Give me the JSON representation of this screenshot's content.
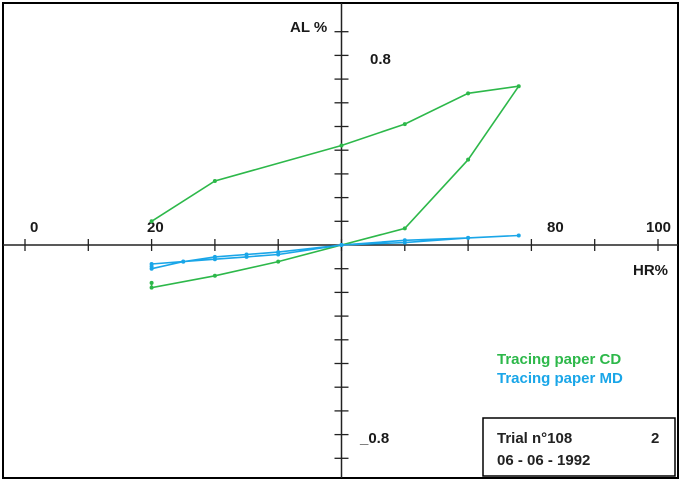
{
  "chart_data": {
    "type": "line",
    "title": "",
    "xlabel": "HR%",
    "ylabel": "AL %",
    "xlim": [
      0,
      100
    ],
    "ylim": [
      -0.8,
      0.8
    ],
    "x_tick_labels": [
      "0",
      "20",
      "80",
      "100"
    ],
    "y_tick_labels": [
      "0.8",
      "_0.8"
    ],
    "series": [
      {
        "name": "Tracing paper CD",
        "color": "#2db84a",
        "x": [
          20,
          30,
          50,
          60,
          70,
          78,
          70,
          60,
          50,
          40,
          30,
          20,
          20
        ],
        "y": [
          0.1,
          0.27,
          0.42,
          0.51,
          0.64,
          0.67,
          0.36,
          0.07,
          0.0,
          -0.07,
          -0.13,
          -0.18,
          -0.16
        ]
      },
      {
        "name": "Tracing paper MD",
        "color": "#1aa6e8",
        "x": [
          20,
          25,
          30,
          35,
          40,
          50,
          60,
          70,
          78,
          70,
          60,
          50,
          40,
          35,
          30,
          25,
          20,
          20
        ],
        "y": [
          -0.08,
          -0.07,
          -0.06,
          -0.05,
          -0.04,
          0.0,
          0.01,
          0.03,
          0.04,
          0.03,
          0.02,
          0.0,
          -0.03,
          -0.04,
          -0.05,
          -0.07,
          -0.1,
          -0.09
        ]
      }
    ],
    "legend": [
      "Tracing paper CD",
      "Tracing paper MD"
    ],
    "legend_position": "lower-right"
  },
  "info_box": {
    "trial": "Trial n°108",
    "number": "2",
    "date": "06 - 06 - 1992"
  },
  "colors": {
    "frame": "#000000",
    "axis": "#222222"
  }
}
